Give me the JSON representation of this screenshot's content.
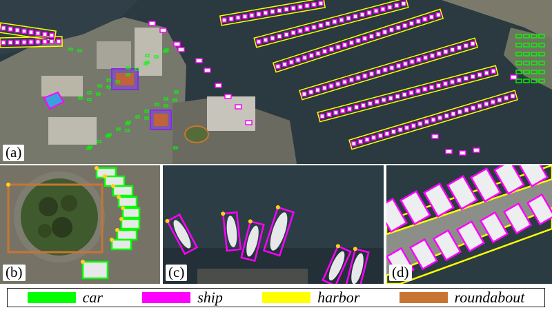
{
  "panels": [
    {
      "id": "a",
      "label": "(a)"
    },
    {
      "id": "b",
      "label": "(b)"
    },
    {
      "id": "c",
      "label": "(c)"
    },
    {
      "id": "d",
      "label": "(d)"
    }
  ],
  "legend": [
    {
      "label": "car",
      "color": "#00ff00"
    },
    {
      "label": "ship",
      "color": "#ff00ff"
    },
    {
      "label": "harbor",
      "color": "#ffff00"
    },
    {
      "label": "roundabout",
      "color": "#c87533"
    }
  ],
  "colors": {
    "water": "#27343a",
    "land": "#6e6f66",
    "car": "#00ff00",
    "ship": "#ff00ff",
    "harbor": "#ffff00",
    "roundabout": "#c87533"
  }
}
